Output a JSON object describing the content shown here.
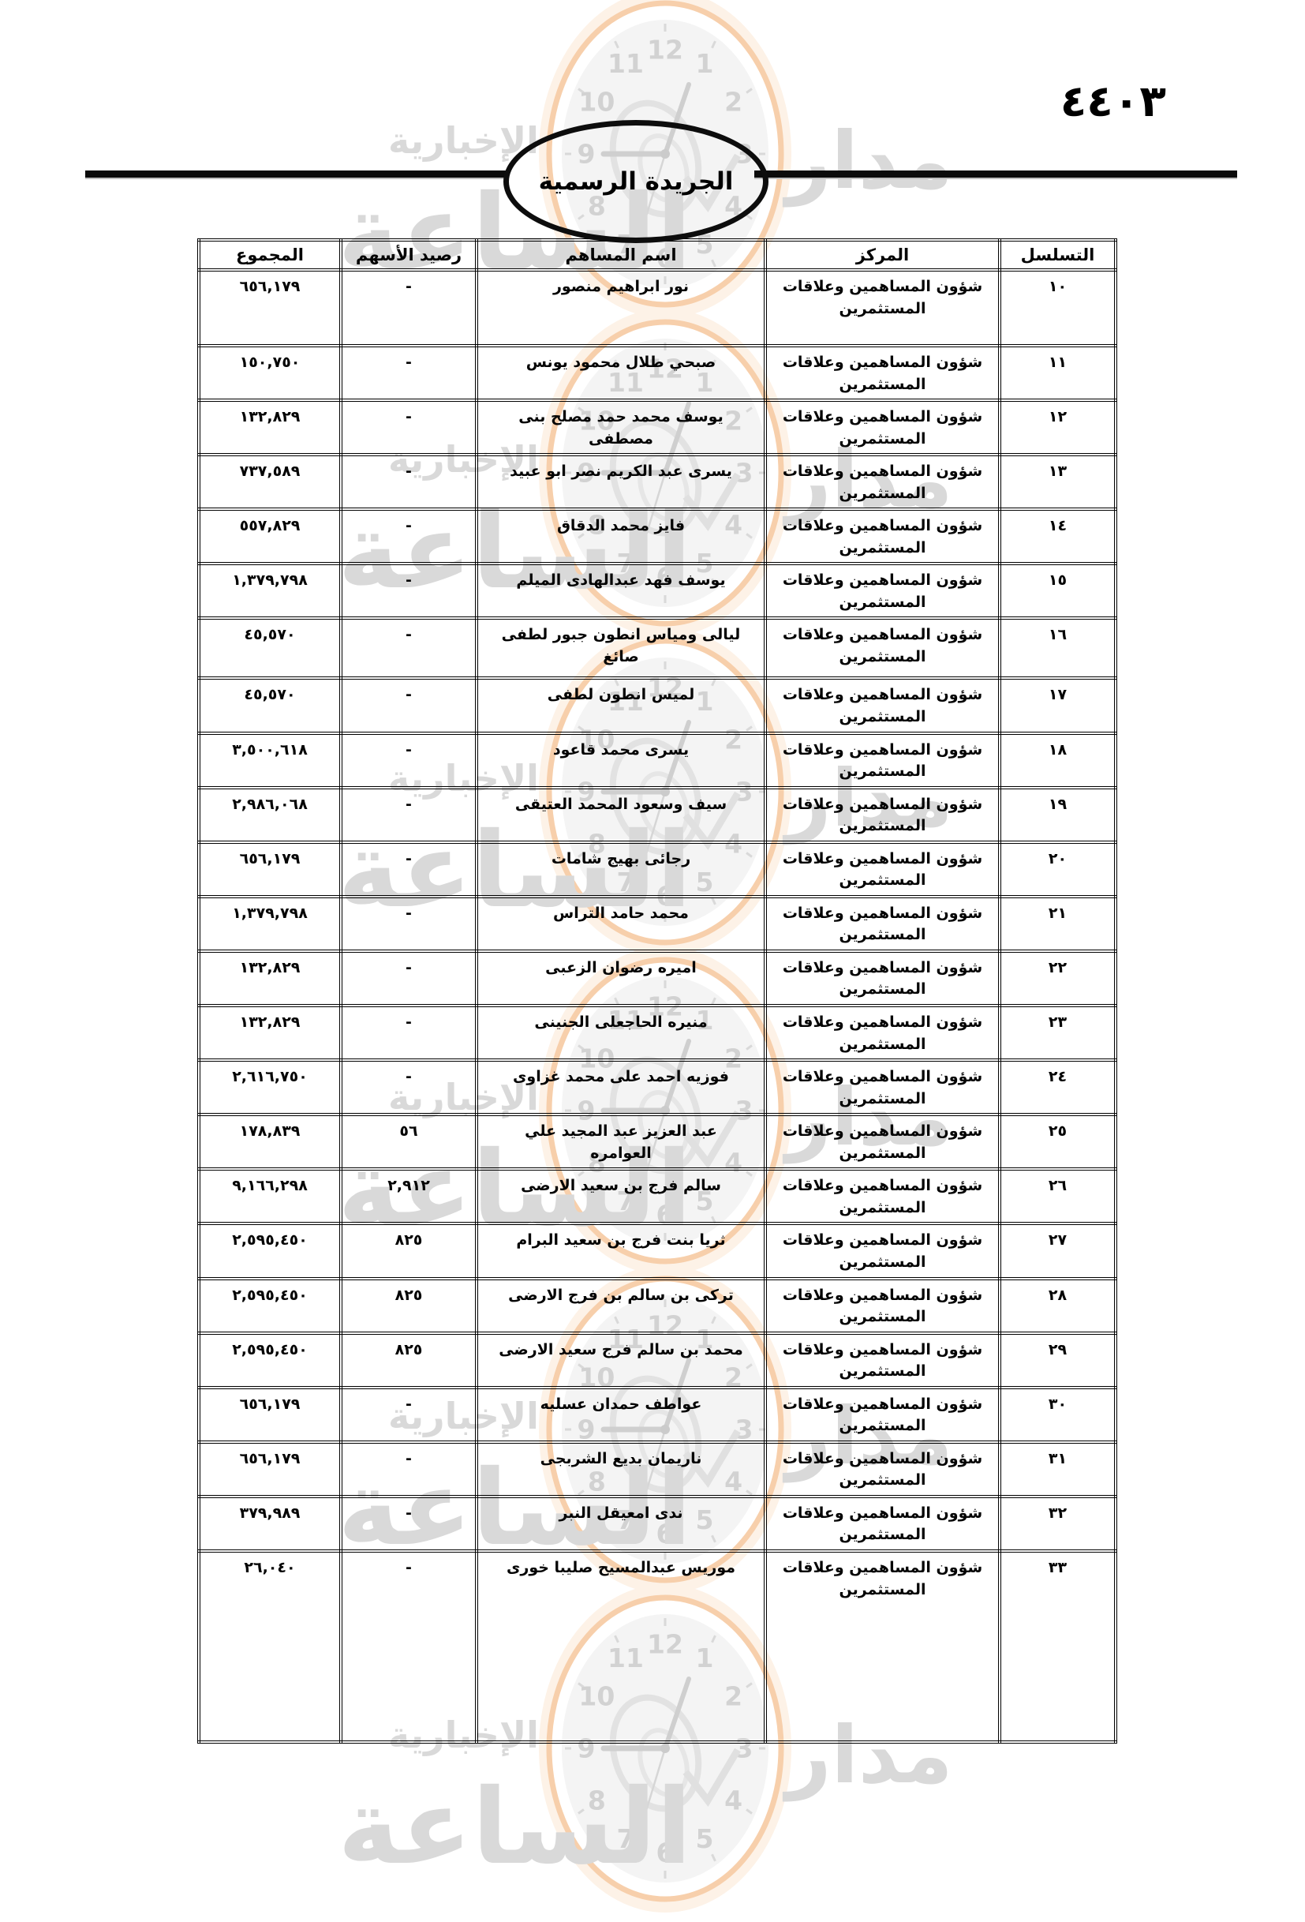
{
  "header": {
    "page_number": "٤٤٠٣",
    "gazette_title": "الجريدة الرسمية"
  },
  "watermark": {
    "word_madar": "مدار",
    "word_saa": "الساعة",
    "word_ikhbariya": "الإخبارية",
    "clock_numerals": [
      "12",
      "1",
      "2",
      "3",
      "4",
      "5",
      "6",
      "7",
      "8",
      "9",
      "10",
      "11"
    ],
    "ring_color": "#f7cfab",
    "glow_color": "#fdf2e7",
    "face_color": "#f4f4f4",
    "text_color": "#d9d9d9"
  },
  "table": {
    "columns": [
      {
        "key": "serial",
        "label": "التسلسل"
      },
      {
        "key": "position",
        "label": "المركز"
      },
      {
        "key": "name",
        "label": "اسم المساهم"
      },
      {
        "key": "balance",
        "label": "رصيد الأسهم"
      },
      {
        "key": "total",
        "label": "المجموع"
      }
    ],
    "rows": [
      {
        "serial": "١٠",
        "position": "شؤون المساهمين وعلاقات المستثمرين",
        "name": "نور ابراهيم منصور",
        "balance": "-",
        "total": "٦٥٦,١٧٩"
      },
      {
        "serial": "١١",
        "position": "شؤون المساهمين وعلاقات المستثمرين",
        "name": "صبحي طلال محمود يونس",
        "balance": "-",
        "total": "١٥٠,٧٥٠"
      },
      {
        "serial": "١٢",
        "position": "شؤون المساهمين وعلاقات المستثمرين",
        "name": "يوسف محمد حمد مصلح بنى مصطفى",
        "balance": "-",
        "total": "١٣٢,٨٢٩"
      },
      {
        "serial": "١٣",
        "position": "شؤون المساهمين وعلاقات المستثمرين",
        "name": "يسرى عبد الكريم نصر ابو عبيد",
        "balance": "-",
        "total": "٧٣٧,٥٨٩"
      },
      {
        "serial": "١٤",
        "position": "شؤون المساهمين وعلاقات المستثمرين",
        "name": "فايز محمد الدقاق",
        "balance": "-",
        "total": "٥٥٧,٨٢٩"
      },
      {
        "serial": "١٥",
        "position": "شؤون المساهمين وعلاقات المستثمرين",
        "name": "يوسف فهد عبدالهادى الميلم",
        "balance": "-",
        "total": "١,٣٧٩,٧٩٨"
      },
      {
        "serial": "١٦",
        "position": "شؤون المساهمين وعلاقات المستثمرين",
        "name": "ليالى ومياس انطون جبور لطفى صائغ",
        "balance": "-",
        "total": "٤٥,٥٧٠"
      },
      {
        "serial": "١٧",
        "position": "شؤون المساهمين وعلاقات المستثمرين",
        "name": "لميس انطون لطفى",
        "balance": "-",
        "total": "٤٥,٥٧٠"
      },
      {
        "serial": "١٨",
        "position": "شؤون المساهمين وعلاقات المستثمرين",
        "name": "يسرى محمد قاعود",
        "balance": "-",
        "total": "٣,٥٠٠,٦١٨"
      },
      {
        "serial": "١٩",
        "position": "شؤون المساهمين وعلاقات المستثمرين",
        "name": "سيف وسعود المحمد العتيقى",
        "balance": "-",
        "total": "٢,٩٨٦,٠٦٨"
      },
      {
        "serial": "٢٠",
        "position": "شؤون المساهمين وعلاقات المستثمرين",
        "name": "رجائى بهيج شامات",
        "balance": "-",
        "total": "٦٥٦,١٧٩"
      },
      {
        "serial": "٢١",
        "position": "شؤون المساهمين وعلاقات المستثمرين",
        "name": "محمد حامد التراس",
        "balance": "-",
        "total": "١,٣٧٩,٧٩٨"
      },
      {
        "serial": "٢٢",
        "position": "شؤون المساهمين وعلاقات المستثمرين",
        "name": "اميره رضوان الزعبى",
        "balance": "-",
        "total": "١٣٢,٨٢٩"
      },
      {
        "serial": "٢٣",
        "position": "شؤون المساهمين وعلاقات المستثمرين",
        "name": "منيره الحاجعلى الجنينى",
        "balance": "-",
        "total": "١٣٢,٨٢٩"
      },
      {
        "serial": "٢٤",
        "position": "شؤون المساهمين وعلاقات المستثمرين",
        "name": "فوزيه احمد على محمد غزاوى",
        "balance": "-",
        "total": "٢,٦١٦,٧٥٠"
      },
      {
        "serial": "٢٥",
        "position": "شؤون المساهمين وعلاقات المستثمرين",
        "name": "عبد العزيز عبد المجيد علي العوامره",
        "balance": "٥٦",
        "total": "١٧٨,٨٣٩"
      },
      {
        "serial": "٢٦",
        "position": "شؤون المساهمين وعلاقات المستثمرين",
        "name": "سالم فرج بن سعيد الارضى",
        "balance": "٢,٩١٢",
        "total": "٩,١٦٦,٢٩٨"
      },
      {
        "serial": "٢٧",
        "position": "شؤون المساهمين وعلاقات المستثمرين",
        "name": "ثريا بنت فرج بن سعيد البرام",
        "balance": "٨٢٥",
        "total": "٢,٥٩٥,٤٥٠"
      },
      {
        "serial": "٢٨",
        "position": "شؤون المساهمين وعلاقات المستثمرين",
        "name": "تركى بن سالم بن فرج الارضى",
        "balance": "٨٢٥",
        "total": "٢,٥٩٥,٤٥٠"
      },
      {
        "serial": "٢٩",
        "position": "شؤون المساهمين وعلاقات المستثمرين",
        "name": "محمد بن سالم فرج سعيد الارضى",
        "balance": "٨٢٥",
        "total": "٢,٥٩٥,٤٥٠"
      },
      {
        "serial": "٣٠",
        "position": "شؤون المساهمين وعلاقات المستثمرين",
        "name": "عواطف حمدان عسليه",
        "balance": "-",
        "total": "٦٥٦,١٧٩"
      },
      {
        "serial": "٣١",
        "position": "شؤون المساهمين وعلاقات المستثمرين",
        "name": "ناريمان بديع الشربجى",
        "balance": "-",
        "total": "٦٥٦,١٧٩"
      },
      {
        "serial": "٣٢",
        "position": "شؤون المساهمين وعلاقات المستثمرين",
        "name": "ندى امعيقل النبر",
        "balance": "-",
        "total": "٣٧٩,٩٨٩"
      },
      {
        "serial": "٣٣",
        "position": "شؤون المساهمين وعلاقات المستثمرين",
        "name": "موريس عبدالمسيح صليبا خورى",
        "balance": "-",
        "total": "٢٦,٠٤٠"
      }
    ]
  }
}
